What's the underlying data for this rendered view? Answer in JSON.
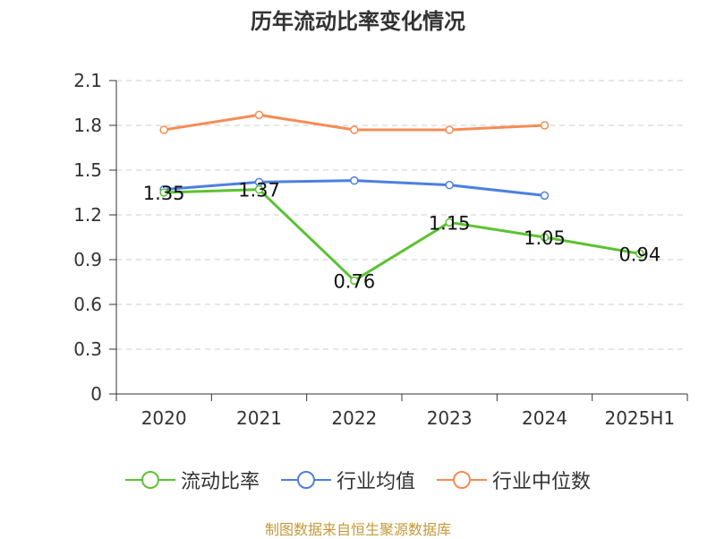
{
  "chart_data": {
    "type": "line",
    "title": "历年流动比率变化情况",
    "categories": [
      "2020",
      "2021",
      "2022",
      "2023",
      "2024",
      "2025H1"
    ],
    "ylim": [
      0,
      2.1
    ],
    "yticks": [
      "0",
      "0.3",
      "0.6",
      "0.9",
      "1.2",
      "1.5",
      "1.8",
      "2.1"
    ],
    "grid": true,
    "legend_position": "bottom",
    "series": [
      {
        "name": "流动比率",
        "color": "#5cc232",
        "values": [
          1.35,
          1.37,
          0.76,
          1.15,
          1.05,
          0.94
        ],
        "labels": [
          "1.35",
          "1.37",
          "0.76",
          "1.15",
          "1.05",
          "0.94"
        ]
      },
      {
        "name": "行业均值",
        "color": "#4d7fe0",
        "values": [
          1.37,
          1.42,
          1.43,
          1.4,
          1.33,
          null
        ]
      },
      {
        "name": "行业中位数",
        "color": "#f58c55",
        "values": [
          1.77,
          1.87,
          1.77,
          1.77,
          1.8,
          null
        ]
      }
    ]
  },
  "source": "制图数据来自恒生聚源数据库"
}
